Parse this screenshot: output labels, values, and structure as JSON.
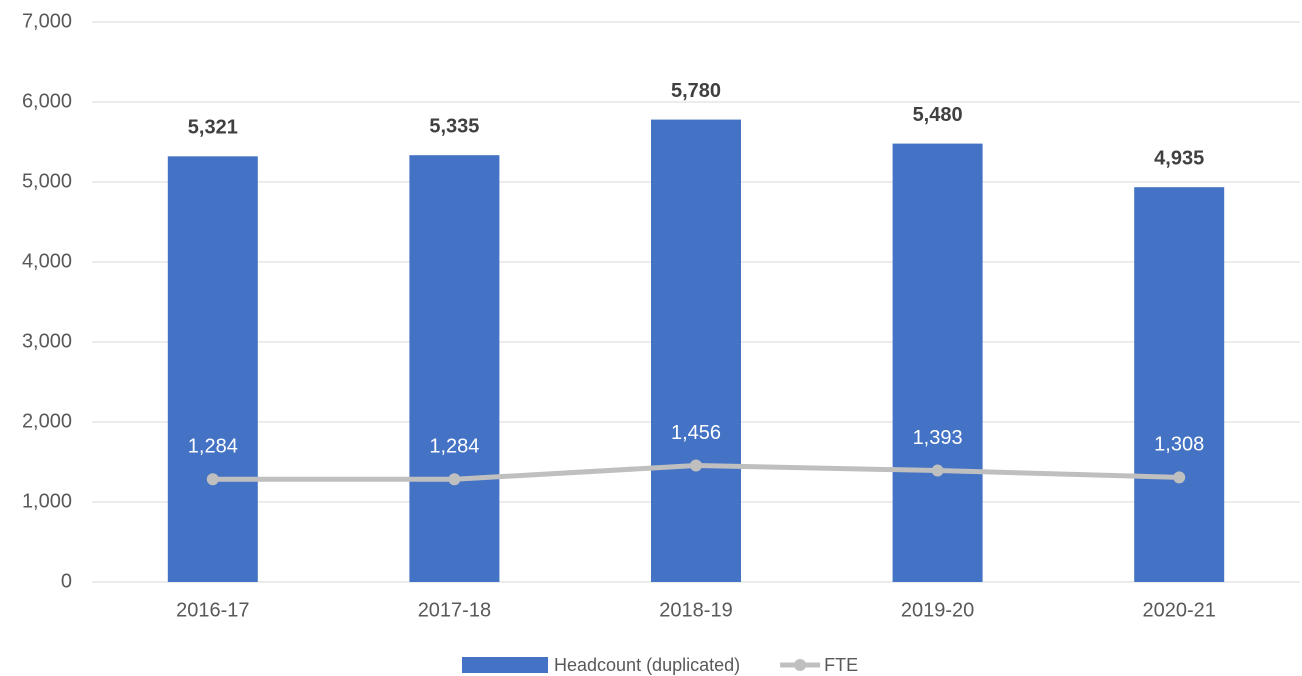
{
  "chart_data": {
    "type": "combo",
    "categories": [
      "2016-17",
      "2017-18",
      "2018-19",
      "2019-20",
      "2020-21"
    ],
    "series": [
      {
        "name": "Headcount (duplicated)",
        "type": "bar",
        "color": "#4472c4",
        "values": [
          5321,
          5335,
          5780,
          5480,
          4935
        ],
        "value_labels": [
          "5,321",
          "5,335",
          "5,780",
          "5,480",
          "4,935"
        ]
      },
      {
        "name": "FTE",
        "type": "line",
        "color": "#bfbfbf",
        "values": [
          1284,
          1284,
          1456,
          1393,
          1308
        ],
        "value_labels": [
          "1,284",
          "1,284",
          "1,456",
          "1,393",
          "1,308"
        ]
      }
    ],
    "ylim": [
      0,
      7000
    ],
    "yticks": [
      0,
      {
        "value": 1000,
        "label": "1,000"
      },
      {
        "value": 2000,
        "label": "2,000"
      },
      {
        "value": 3000,
        "label": "3,000"
      },
      {
        "value": 4000,
        "label": "4,000"
      },
      {
        "value": 5000,
        "label": "5,000"
      },
      {
        "value": 6000,
        "label": "6,000"
      },
      {
        "value": 7000,
        "label": "7,000"
      }
    ],
    "grid": true,
    "legend": "bottom"
  }
}
